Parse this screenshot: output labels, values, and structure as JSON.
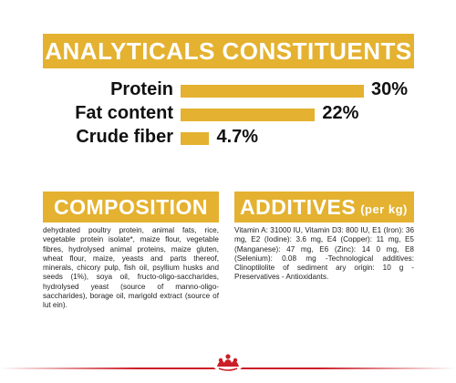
{
  "analytics": {
    "title": "ANALYTICALS CONSTITUENTS",
    "items": [
      {
        "label": "Protein",
        "value": "30%",
        "percent": 30
      },
      {
        "label": "Fat content",
        "value": "22%",
        "percent": 22
      },
      {
        "label": "Crude fiber",
        "value": "4.7%",
        "percent": 4.7
      }
    ]
  },
  "composition": {
    "title": "COMPOSITION",
    "text": "dehydrated poultry protein, animal fats, rice, vegetable protein isolate*, maize flour, vegetable fibres, hydrolysed animal proteins, maize gluten, wheat flour, maize, yeasts and parts thereof, minerals, chicory pulp, fish oil, psyllium husks and seeds (1%), soya oil, fructo-oligo-saccharides, hydrolysed yeast (source of manno-oligo-saccharides), borage oil, marigold extract (source of lut ein)."
  },
  "additives": {
    "title": "ADDITIVES",
    "unit": "(per kg)",
    "text": "Vitamin A: 31000 IU, Vitamin D3: 800 IU, E1 (Iron): 36 mg, E2 (Iodine): 3.6 mg, E4 (Copper): 11 mg, E5 (Manganese): 47 mg, E6 (Zinc): 14 0 mg, E8 (Selenium): 0.08 mg -Technological additives: Clinoptilolite of sediment ary origin: 10 g - Preservatives - Antioxidants."
  },
  "colors": {
    "accent": "#e4b230",
    "brand_red": "#cc1e28"
  },
  "footer": {
    "logo_icon": "royal-canin-crown-icon"
  }
}
